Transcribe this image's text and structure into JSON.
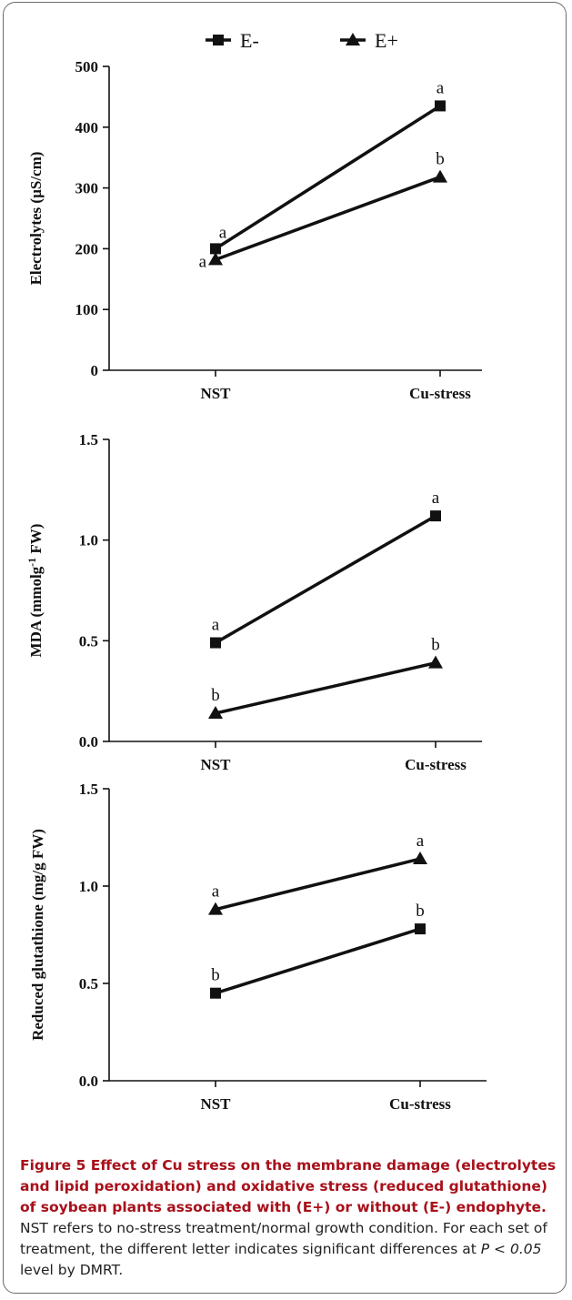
{
  "legend": {
    "items": [
      {
        "label": "E-",
        "marker": "square"
      },
      {
        "label": "E+",
        "marker": "triangle"
      }
    ]
  },
  "chart_data": [
    {
      "type": "line",
      "categories": [
        "NST",
        "Cu-stress"
      ],
      "ylabel": "Electrolytes (µS/cm)",
      "ylim": [
        0,
        500
      ],
      "yticks": [
        "0",
        "100",
        "200",
        "300",
        "400",
        "500"
      ],
      "series": [
        {
          "name": "E-",
          "marker": "square",
          "values": [
            200,
            435
          ],
          "letters": [
            "a",
            "a"
          ]
        },
        {
          "name": "E+",
          "marker": "triangle",
          "values": [
            182,
            318
          ],
          "letters": [
            "a",
            "b"
          ]
        }
      ]
    },
    {
      "type": "line",
      "categories": [
        "NST",
        "Cu-stress"
      ],
      "ylabel_main": "MDA (mmolg",
      "ylabel_sup": "-1",
      "ylabel_tail": " FW)",
      "ylim": [
        0,
        1.5
      ],
      "yticks": [
        "0.0",
        "0.5",
        "1.0",
        "1.5"
      ],
      "series": [
        {
          "name": "E-",
          "marker": "square",
          "values": [
            0.49,
            1.12
          ],
          "letters": [
            "a",
            "a"
          ]
        },
        {
          "name": "E+",
          "marker": "triangle",
          "values": [
            0.14,
            0.39
          ],
          "letters": [
            "b",
            "b"
          ]
        }
      ]
    },
    {
      "type": "line",
      "categories": [
        "NST",
        "Cu-stress"
      ],
      "ylabel": "Reduced glutathione (mg/g FW)",
      "ylim": [
        0,
        1.5
      ],
      "yticks": [
        "0.0",
        "0.5",
        "1.0",
        "1.5"
      ],
      "series": [
        {
          "name": "E-",
          "marker": "square",
          "values": [
            0.45,
            0.78
          ],
          "letters": [
            "b",
            "b"
          ]
        },
        {
          "name": "E+",
          "marker": "triangle",
          "values": [
            0.88,
            1.14
          ],
          "letters": [
            "a",
            "a"
          ]
        }
      ]
    }
  ],
  "caption": {
    "title": "Figure 5 Effect of Cu stress on the membrane damage (electrolytes and lipid peroxidation) and oxidative stress (reduced glutathione) of soybean plants associated with (E+) or without (E-) endophyte.",
    "body1": " NST refers to no-stress treatment/normal growth condition. For each set of treatment, the different letter indicates significant differences at ",
    "pvalue": "P < 0.05",
    "body2": " level by DMRT."
  }
}
